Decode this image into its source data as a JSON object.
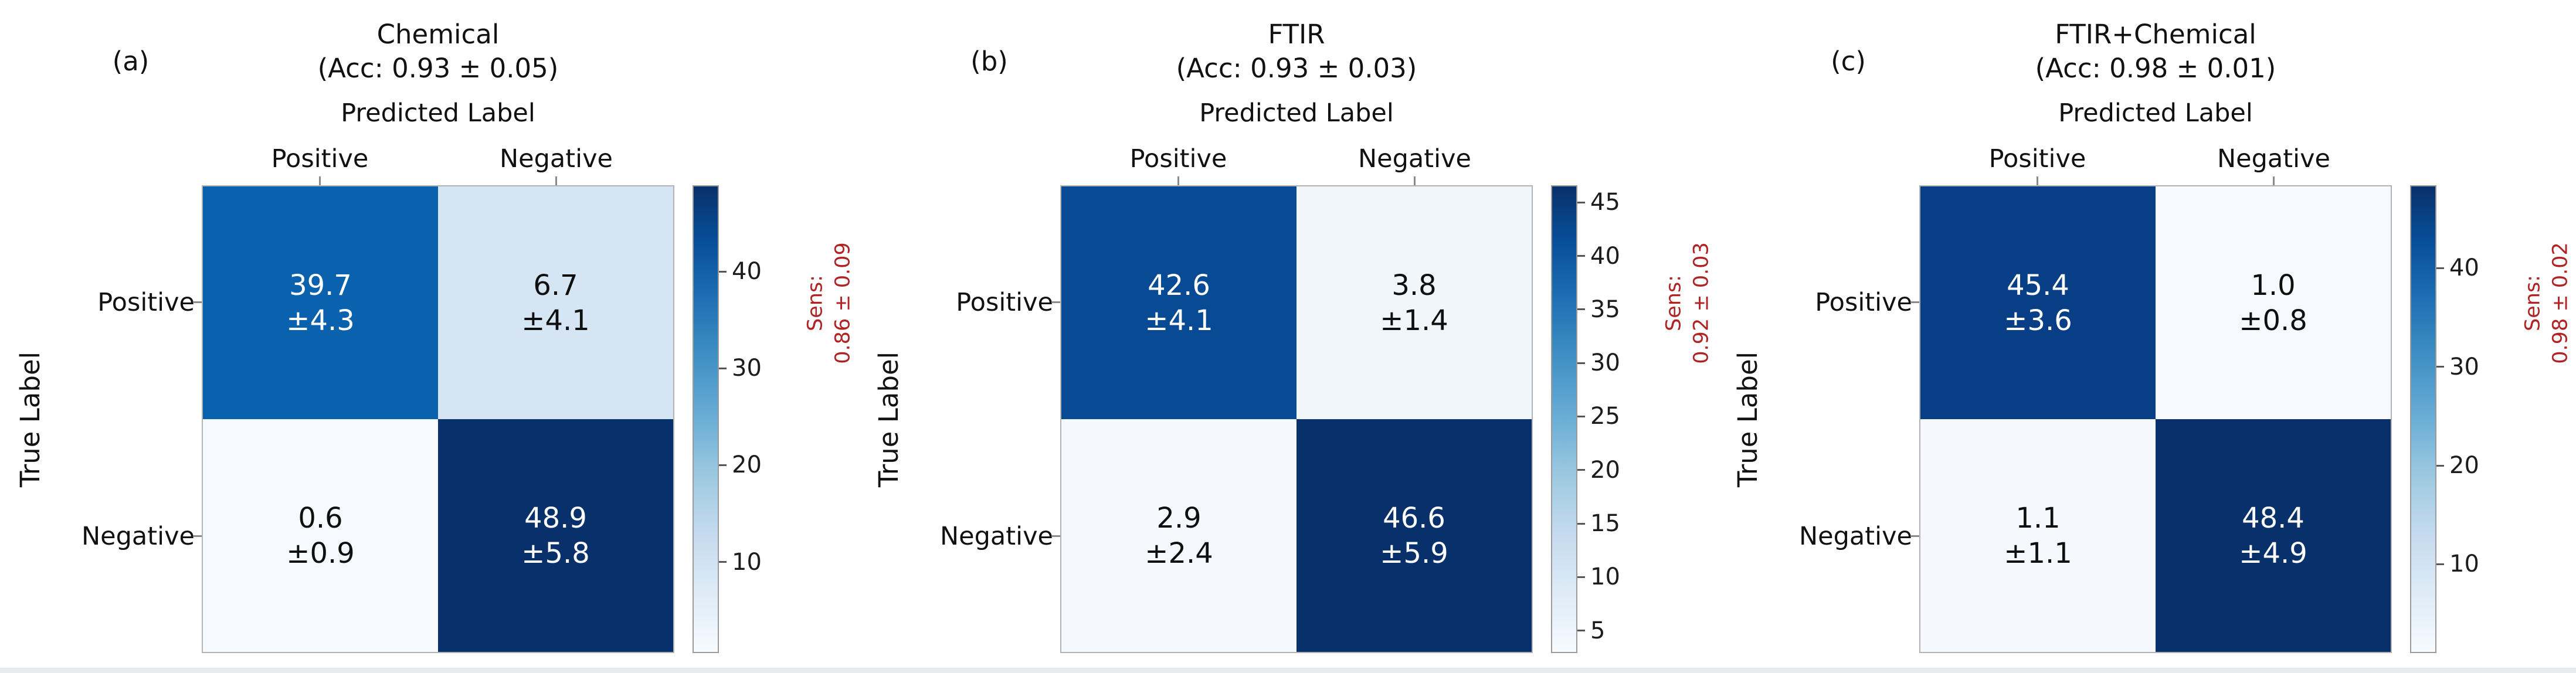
{
  "figure": {
    "sens_color": "#b22222",
    "text_color": "#111111",
    "colorbar_top_color": "#08306b",
    "colorbar_bottom_color": "#f7fbff"
  },
  "panels": [
    {
      "tag": "(a)",
      "title": "Chemical",
      "subtitle": "(Acc: 0.93 ± 0.05)",
      "xaxis_title": "Predicted Label",
      "yaxis_title": "True Label",
      "col_labels": [
        "Positive",
        "Negative"
      ],
      "row_labels": [
        "Positive",
        "Negative"
      ],
      "cells": [
        {
          "value": "39.7",
          "error": "±4.3",
          "bg": "#0a62ae",
          "fg": "#ffffff"
        },
        {
          "value": "6.7",
          "error": "±4.1",
          "bg": "#d6e5f4",
          "fg": "#0f0f0f"
        },
        {
          "value": "0.6",
          "error": "±0.9",
          "bg": "#f6fafe",
          "fg": "#0f0f0f"
        },
        {
          "value": "48.9",
          "error": "±5.8",
          "bg": "#08306b",
          "fg": "#ffffff"
        }
      ],
      "sens_label": "Sens:",
      "sens_value": "0.86 ± 0.09"
    },
    {
      "tag": "(b)",
      "title": "FTIR",
      "subtitle": "(Acc: 0.93 ± 0.03)",
      "xaxis_title": "Predicted Label",
      "yaxis_title": "True Label",
      "col_labels": [
        "Positive",
        "Negative"
      ],
      "row_labels": [
        "Positive",
        "Negative"
      ],
      "cells": [
        {
          "value": "42.6",
          "error": "±4.1",
          "bg": "#084a93",
          "fg": "#ffffff"
        },
        {
          "value": "3.8",
          "error": "±1.4",
          "bg": "#f1f6fb",
          "fg": "#0f0f0f"
        },
        {
          "value": "2.9",
          "error": "±2.4",
          "bg": "#f5f9fd",
          "fg": "#0f0f0f"
        },
        {
          "value": "46.6",
          "error": "±5.9",
          "bg": "#08306b",
          "fg": "#ffffff"
        }
      ],
      "sens_label": "Sens:",
      "sens_value": "0.92 ± 0.03"
    },
    {
      "tag": "(c)",
      "title": "FTIR+Chemical",
      "subtitle": "(Acc: 0.98 ± 0.01)",
      "xaxis_title": "Predicted Label",
      "yaxis_title": "True Label",
      "col_labels": [
        "Positive",
        "Negative"
      ],
      "row_labels": [
        "Positive",
        "Negative"
      ],
      "cells": [
        {
          "value": "45.4",
          "error": "±3.6",
          "bg": "#083e85",
          "fg": "#ffffff"
        },
        {
          "value": "1.0",
          "error": "±0.8",
          "bg": "#f6fafe",
          "fg": "#0f0f0f"
        },
        {
          "value": "1.1",
          "error": "±1.1",
          "bg": "#f5f9fd",
          "fg": "#0f0f0f"
        },
        {
          "value": "48.4",
          "error": "±4.9",
          "bg": "#08306b",
          "fg": "#ffffff"
        }
      ],
      "sens_label": "Sens:",
      "sens_value": "0.98 ± 0.02"
    }
  ],
  "chart_data": [
    {
      "type": "heatmap",
      "panel": "(a)",
      "title": "Chemical",
      "subtitle": "(Acc: 0.93 ± 0.05)",
      "xlabel": "Predicted Label",
      "ylabel": "True Label",
      "x_categories": [
        "Positive",
        "Negative"
      ],
      "y_categories": [
        "Positive",
        "Negative"
      ],
      "values": [
        [
          39.7,
          6.7
        ],
        [
          0.6,
          48.9
        ]
      ],
      "errors": [
        [
          4.3,
          4.1
        ],
        [
          0.9,
          5.8
        ]
      ],
      "accuracy": "0.93 ± 0.05",
      "sensitivity": "0.86 ± 0.09",
      "colormap": "Blues",
      "colorbar_ticks": [
        40,
        30,
        20,
        10
      ],
      "vmin": 0.6,
      "vmax": 48.9,
      "legend_position": "right-colorbar",
      "grid": false
    },
    {
      "type": "heatmap",
      "panel": "(b)",
      "title": "FTIR",
      "subtitle": "(Acc: 0.93 ± 0.03)",
      "xlabel": "Predicted Label",
      "ylabel": "True Label",
      "x_categories": [
        "Positive",
        "Negative"
      ],
      "y_categories": [
        "Positive",
        "Negative"
      ],
      "values": [
        [
          42.6,
          3.8
        ],
        [
          2.9,
          46.6
        ]
      ],
      "errors": [
        [
          4.1,
          1.4
        ],
        [
          2.4,
          5.9
        ]
      ],
      "accuracy": "0.93 ± 0.03",
      "sensitivity": "0.92 ± 0.03",
      "colormap": "Blues",
      "colorbar_ticks": [
        45,
        40,
        35,
        30,
        25,
        20,
        15,
        10,
        5
      ],
      "vmin": 2.9,
      "vmax": 46.6,
      "legend_position": "right-colorbar",
      "grid": false
    },
    {
      "type": "heatmap",
      "panel": "(c)",
      "title": "FTIR+Chemical",
      "subtitle": "(Acc: 0.98 ± 0.01)",
      "xlabel": "Predicted Label",
      "ylabel": "True Label",
      "x_categories": [
        "Positive",
        "Negative"
      ],
      "y_categories": [
        "Positive",
        "Negative"
      ],
      "values": [
        [
          45.4,
          1.0
        ],
        [
          1.1,
          48.4
        ]
      ],
      "errors": [
        [
          3.6,
          0.8
        ],
        [
          1.1,
          4.9
        ]
      ],
      "accuracy": "0.98 ± 0.01",
      "sensitivity": "0.98 ± 0.02",
      "colormap": "Blues",
      "colorbar_ticks": [
        40,
        30,
        20,
        10
      ],
      "vmin": 1.0,
      "vmax": 48.4,
      "legend_position": "right-colorbar",
      "grid": false
    }
  ]
}
